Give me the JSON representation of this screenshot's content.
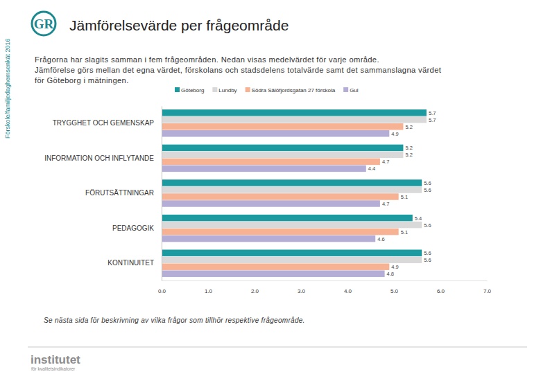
{
  "chart_data": {
    "type": "bar",
    "orientation": "horizontal",
    "data_labels": true,
    "grid": false,
    "legend": "top",
    "title": "Jämförelsevärde per frågeområde",
    "subtitle": [
      "Frågorna har slagits samman i fem frågeområden. Nedan visas medelvärdet för varje område.",
      "Jämförelse görs mellan det egna värdet, förskolans och stadsdelens totalvärde samt det sammanslagna värdet",
      "för Göteborg i mätningen."
    ],
    "categories": [
      "TRYGGHET OCH GEMENSKAP",
      "INFORMATION OCH INFLYTANDE",
      "FÖRUTSÄTTNINGAR",
      "PEDAGOGIK",
      "KONTINUITET"
    ],
    "series": [
      {
        "name": "Göteborg",
        "color": "#1b9aa0",
        "values": [
          5.7,
          5.2,
          5.6,
          5.4,
          5.6
        ]
      },
      {
        "name": "Lundby",
        "color": "#d9d9d9",
        "values": [
          5.7,
          5.2,
          5.6,
          5.6,
          5.6
        ]
      },
      {
        "name": "Södra Sälöfjordsgatan 27 förskola",
        "color": "#f7b294",
        "values": [
          5.2,
          4.7,
          5.1,
          5.1,
          4.9
        ]
      },
      {
        "name": "Gul",
        "color": "#b4aed6",
        "values": [
          4.9,
          4.4,
          4.7,
          4.6,
          4.8
        ]
      }
    ],
    "xlim": [
      0,
      7
    ],
    "xticks": [
      {
        "value": 0,
        "label": "0.0"
      },
      {
        "value": 1,
        "label": "1.0"
      },
      {
        "value": 2,
        "label": "2.0"
      },
      {
        "value": 3,
        "label": "3.0"
      },
      {
        "value": 4,
        "label": "4.0"
      },
      {
        "value": 5,
        "label": "5.0"
      },
      {
        "value": 6,
        "label": "6.0"
      },
      {
        "value": 7,
        "label": "7.0"
      }
    ]
  },
  "side_label": "Förskole/familjedaghemsenkät 2016",
  "logo": "GR",
  "footnote": "Se nästa sida för beskrivning av vilka frågor som tillhör respektive frågeområde.",
  "brand": {
    "name": "institutet",
    "tagline": "för kvalitetsindikatorer"
  }
}
